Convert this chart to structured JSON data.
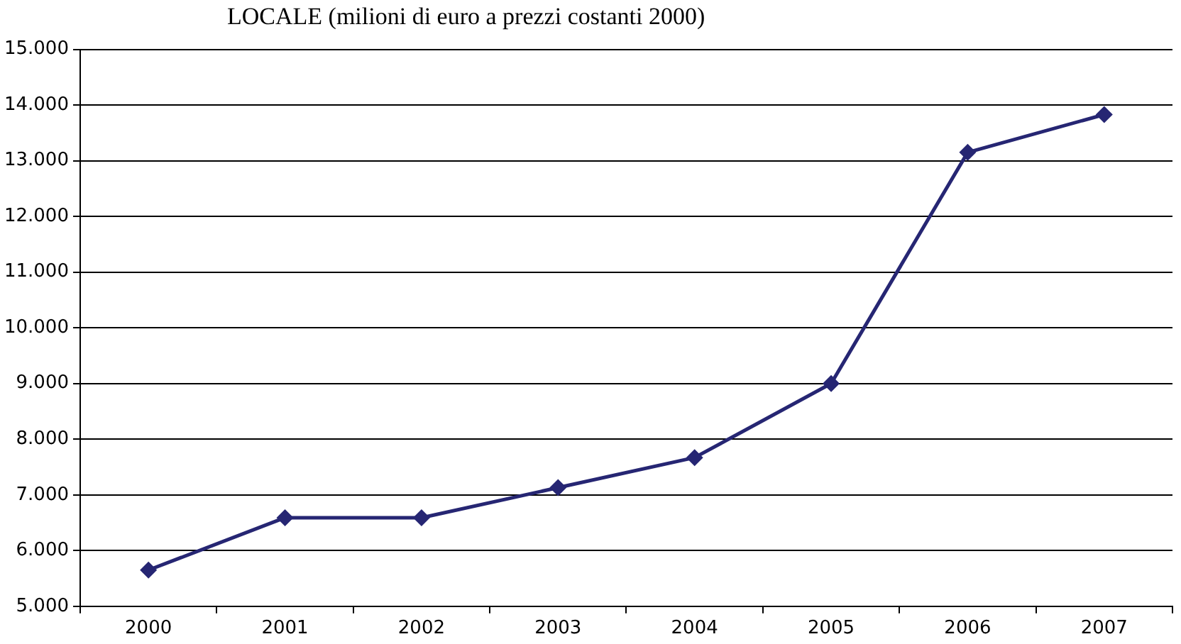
{
  "chart_data": {
    "type": "line",
    "title": "LOCALE (milioni di euro a prezzi costanti 2000)",
    "categories": [
      "2000",
      "2001",
      "2002",
      "2003",
      "2004",
      "2005",
      "2006",
      "2007"
    ],
    "series": [
      {
        "color": "#262673",
        "values": [
          5650,
          6590,
          6590,
          7130,
          7670,
          9000,
          13150,
          13830
        ]
      }
    ],
    "ylim": [
      5000,
      15000
    ],
    "yticks": [
      {
        "value": 5000,
        "label": "5.000"
      },
      {
        "value": 6000,
        "label": "6.000"
      },
      {
        "value": 7000,
        "label": "7.000"
      },
      {
        "value": 8000,
        "label": "8.000"
      },
      {
        "value": 9000,
        "label": "9.000"
      },
      {
        "value": 10000,
        "label": "10.000"
      },
      {
        "value": 11000,
        "label": "11.000"
      },
      {
        "value": 12000,
        "label": "12.000"
      },
      {
        "value": 13000,
        "label": "13.000"
      },
      {
        "value": 14000,
        "label": "14.000"
      },
      {
        "value": 15000,
        "label": "15.000"
      }
    ],
    "grid": "y",
    "legend": false,
    "marker": "diamond",
    "line_style": "solid"
  }
}
